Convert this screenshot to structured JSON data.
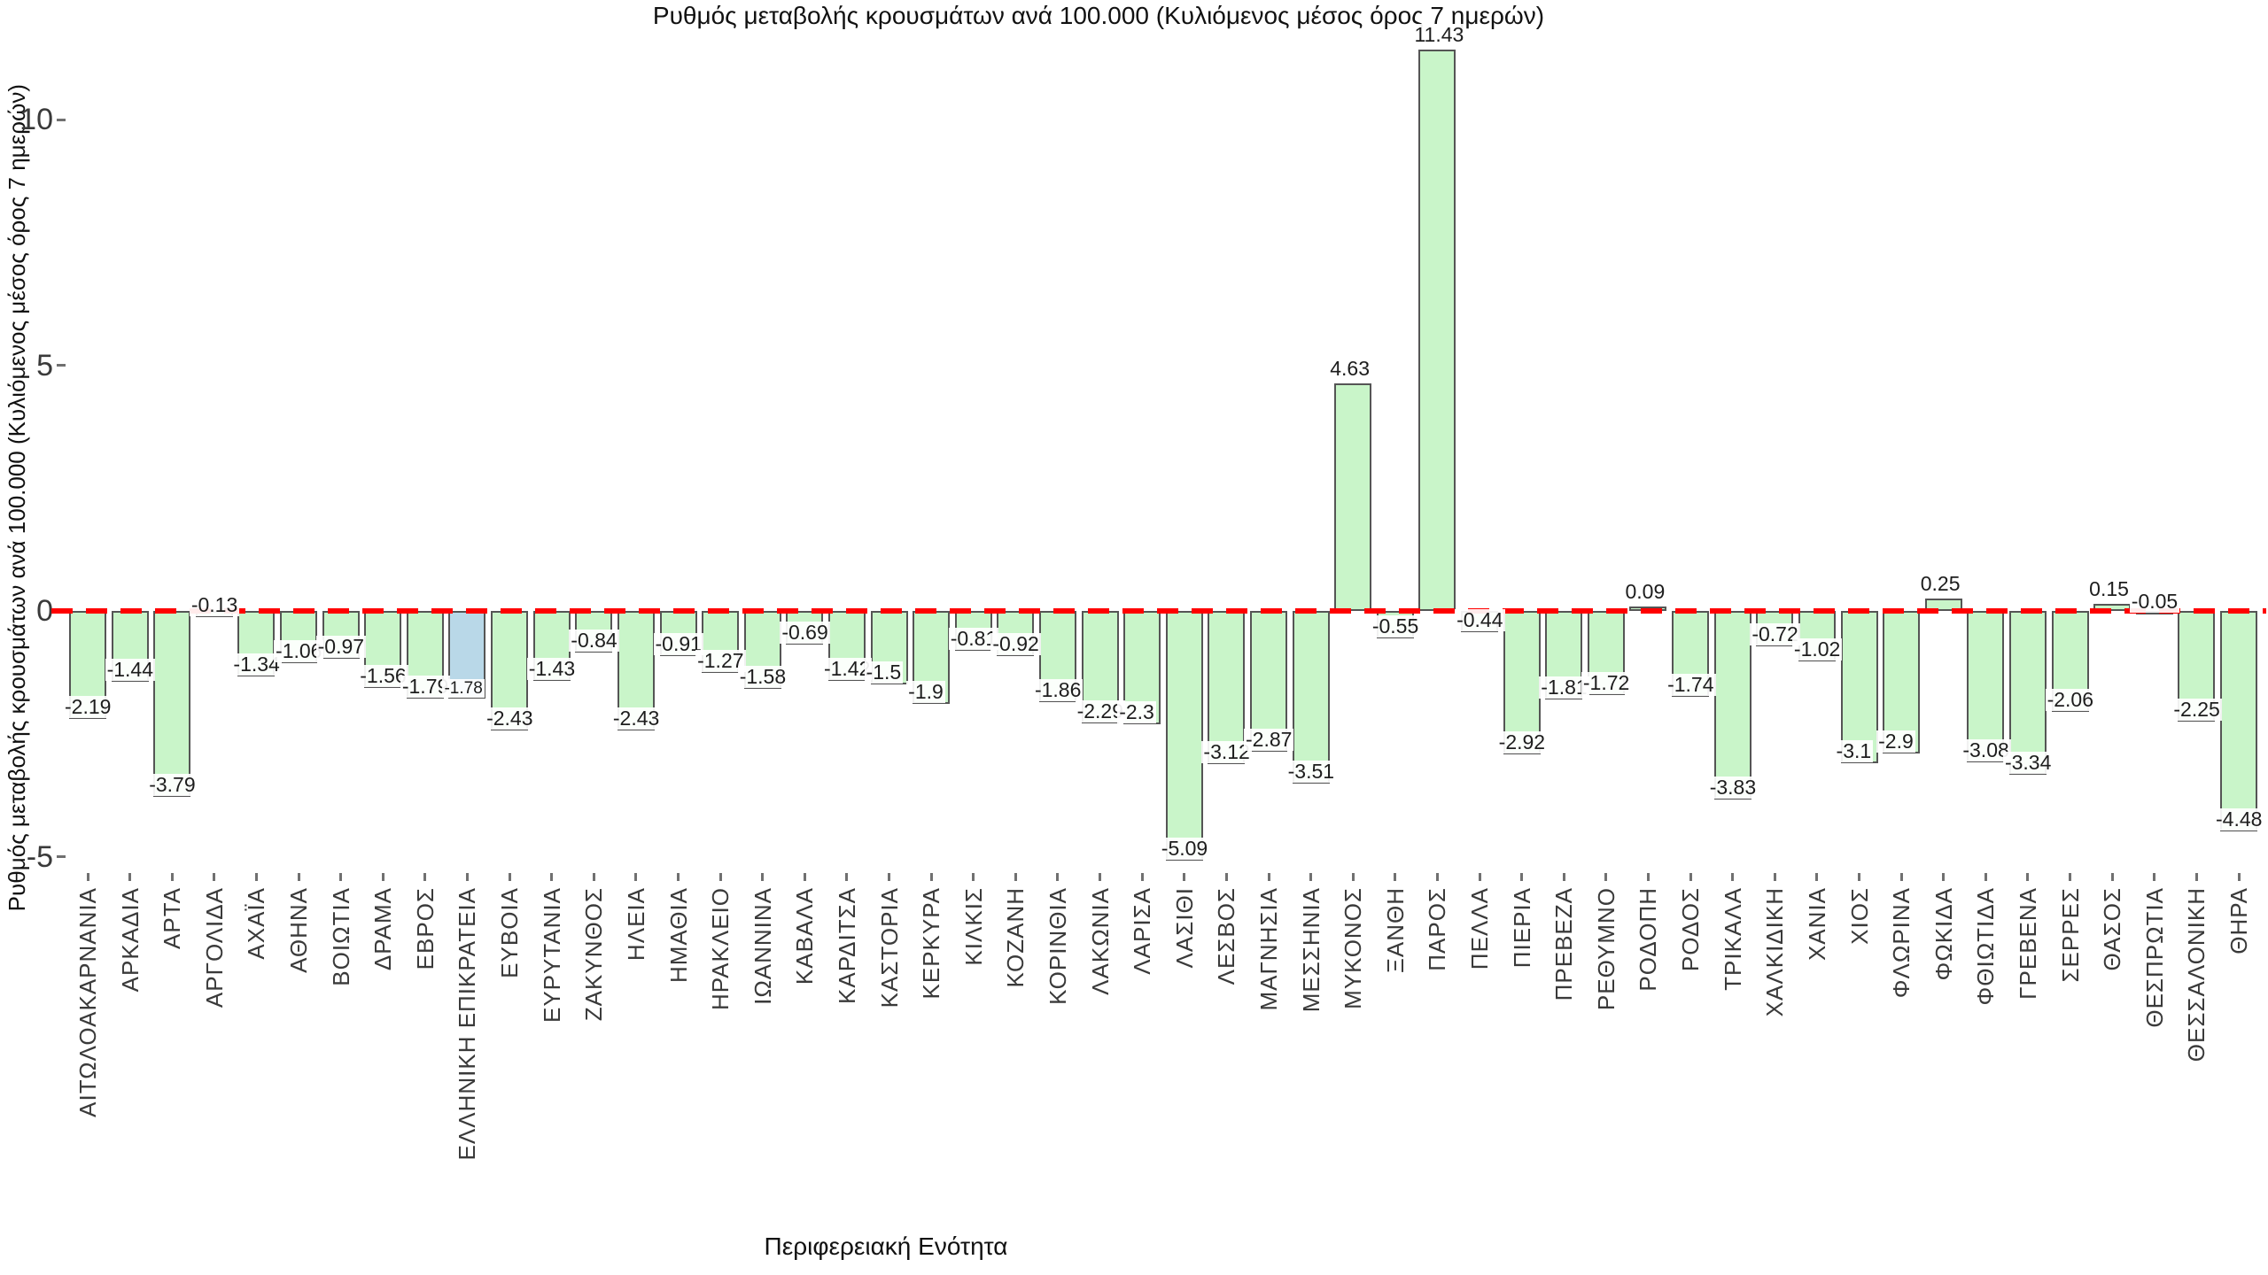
{
  "chart_data": {
    "type": "bar",
    "title": "Ρυθμός μεταβολής κρουσμάτων ανά 100.000 (Κυλιόμενος μέσος όρος 7 ημερών)",
    "xlabel": "Περιφερειακή Ενότητα",
    "ylabel": "Ρυθμός μεταβολής κρουσμάτων ανά 100.000 (Κυλιόμενος μέσος όρος 7 ημερών)",
    "yticks": [
      10,
      5,
      0,
      -5
    ],
    "ylim": [
      -5.35,
      11.9
    ],
    "grid": false,
    "legend": null,
    "zero_line": {
      "style": "dashed",
      "color": "#ff0000"
    },
    "bar_fill": "#c9f5c9",
    "bar_fill_highlight": "#b9d8e8",
    "bar_border": "#555555",
    "highlight_category": "ΕΛΛΗΝΙΚΗ ΕΠΙΚΡΑΤΕΙΑ",
    "categories": [
      "ΑΙΤΩΛΟΑΚΑΡΝΑΝΙΑ",
      "ΑΡΚΑΔΙΑ",
      "ΑΡΤΑ",
      "ΑΡΓΟΛΙΔΑ",
      "ΑΧΑΪΑ",
      "ΑΘΗΝΑ",
      "ΒΟΙΩΤΙΑ",
      "ΔΡΑΜΑ",
      "ΕΒΡΟΣ",
      "ΕΛΛΗΝΙΚΗ ΕΠΙΚΡΑΤΕΙΑ",
      "ΕΥΒΟΙΑ",
      "ΕΥΡΥΤΑΝΙΑ",
      "ΖΑΚΥΝΘΟΣ",
      "ΗΛΕΙΑ",
      "ΗΜΑΘΙΑ",
      "ΗΡΑΚΛΕΙΟ",
      "ΙΩΑΝΝΙΝΑ",
      "ΚΑΒΑΛΑ",
      "ΚΑΡΔΙΤΣΑ",
      "ΚΑΣΤΟΡΙΑ",
      "ΚΕΡΚΥΡΑ",
      "ΚΙΛΚΙΣ",
      "ΚΟΖΑΝΗ",
      "ΚΟΡΙΝΘΙΑ",
      "ΛΑΚΩΝΙΑ",
      "ΛΑΡΙΣΑ",
      "ΛΑΣΙΘΙ",
      "ΛΕΣΒΟΣ",
      "ΜΑΓΝΗΣΙΑ",
      "ΜΕΣΣΗΝΙΑ",
      "ΜΥΚΟΝΟΣ",
      "ΞΑΝΘΗ",
      "ΠΑΡΟΣ",
      "ΠΕΛΛΑ",
      "ΠΙΕΡΙΑ",
      "ΠΡΕΒΕΖΑ",
      "ΡΕΘΥΜΝΟ",
      "ΡΟΔΟΠΗ",
      "ΡΟΔΟΣ",
      "ΤΡΙΚΑΛΑ",
      "ΧΑΛΚΙΔΙΚΗ",
      "ΧΑΝΙΑ",
      "ΧΙΟΣ",
      "ΦΛΩΡΙΝΑ",
      "ΦΩΚΙΔΑ",
      "ΦΘΙΩΤΙΔΑ",
      "ΓΡΕΒΕΝΑ",
      "ΣΕΡΡΕΣ",
      "ΘΑΣΟΣ",
      "ΘΕΣΠΡΩΤΙΑ",
      "ΘΕΣΣΑΛΟΝΙΚΗ",
      "ΘΗΡΑ"
    ],
    "values": [
      -2.19,
      -1.44,
      -3.79,
      -0.13,
      -1.34,
      -1.06,
      -0.97,
      -1.56,
      -1.79,
      -1.78,
      -2.43,
      -1.43,
      -0.84,
      -2.43,
      -0.91,
      -1.27,
      -1.58,
      -0.69,
      -1.42,
      -1.5,
      -1.9,
      -0.81,
      -0.92,
      -1.86,
      -2.29,
      -2.3,
      -5.09,
      -3.12,
      -2.87,
      -3.51,
      4.63,
      -0.55,
      11.43,
      -0.44,
      -2.92,
      -1.81,
      -1.72,
      0.09,
      -1.74,
      -3.83,
      -0.72,
      -1.02,
      -3.1,
      -2.9,
      0.25,
      -3.08,
      -3.34,
      -2.06,
      0.15,
      -0.05,
      -2.25,
      -4.48
    ]
  }
}
